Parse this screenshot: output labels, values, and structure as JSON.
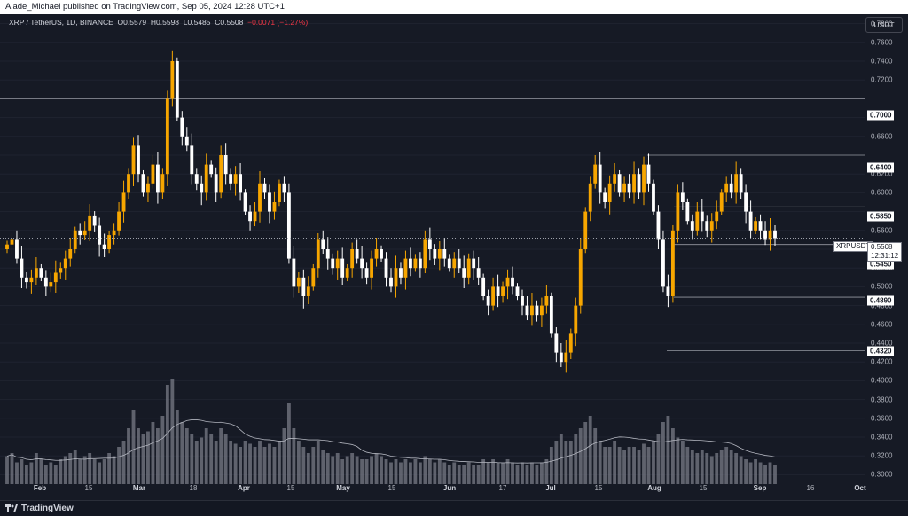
{
  "header": {
    "text": "Alade_Michael published on TradingView.com, Sep 05, 2024 12:28 UTC+1"
  },
  "symbol_line": {
    "name": "XRP / TetherUS, 1D, BINANCE",
    "o_label": "O",
    "o": "0.5579",
    "h_label": "H",
    "h": "0.5598",
    "l_label": "L",
    "l": "0.5485",
    "c_label": "C",
    "c": "0.5508",
    "change": "−0.0071 (−1.27%)"
  },
  "currency_button": "USDT",
  "footer": {
    "brand": "TradingView"
  },
  "price_tags": {
    "r1": "0.7000",
    "r2": "0.6400",
    "r3": "0.5850",
    "s1": "0.5450",
    "s2": "0.4890",
    "s3": "0.4320"
  },
  "current": {
    "symbol": "XRPUSDT",
    "price": "0.5508",
    "countdown": "12:31:12"
  },
  "colors": {
    "up": "#f7a600",
    "down": "#ffffff",
    "background": "#161a25",
    "volume": "#787b86"
  },
  "chart_data": {
    "type": "candlestick",
    "title": "XRP / TetherUS, 1D, BINANCE",
    "ylim": [
      0.29,
      0.79
    ],
    "y_ticks": [
      "0.7800",
      "0.7600",
      "0.7400",
      "0.7200",
      "0.6800",
      "0.6600",
      "0.6200",
      "0.6000",
      "0.5600",
      "0.5200",
      "0.5000",
      "0.4800",
      "0.4600",
      "0.4400",
      "0.4200",
      "0.4000",
      "0.3800",
      "0.3600",
      "0.3400",
      "0.3200",
      "0.3000"
    ],
    "x_ticks": [
      "Feb",
      "15",
      "Mar",
      "18",
      "Apr",
      "15",
      "May",
      "15",
      "Jun",
      "17",
      "Jul",
      "15",
      "Aug",
      "15",
      "Sep",
      "16",
      "Oct"
    ],
    "horizontal_levels": [
      0.7,
      0.64,
      0.585,
      0.545,
      0.489,
      0.432
    ],
    "close_path": [
      0.545,
      0.55,
      0.53,
      0.51,
      0.505,
      0.51,
      0.52,
      0.51,
      0.5,
      0.505,
      0.515,
      0.52,
      0.53,
      0.54,
      0.56,
      0.555,
      0.56,
      0.575,
      0.565,
      0.545,
      0.54,
      0.555,
      0.56,
      0.58,
      0.6,
      0.62,
      0.65,
      0.62,
      0.6,
      0.61,
      0.63,
      0.6,
      0.62,
      0.7,
      0.74,
      0.68,
      0.66,
      0.65,
      0.62,
      0.61,
      0.6,
      0.63,
      0.62,
      0.6,
      0.64,
      0.62,
      0.61,
      0.62,
      0.6,
      0.58,
      0.57,
      0.58,
      0.61,
      0.6,
      0.58,
      0.59,
      0.61,
      0.6,
      0.53,
      0.5,
      0.51,
      0.49,
      0.5,
      0.52,
      0.55,
      0.54,
      0.53,
      0.52,
      0.53,
      0.51,
      0.52,
      0.54,
      0.53,
      0.52,
      0.51,
      0.53,
      0.54,
      0.53,
      0.51,
      0.5,
      0.52,
      0.51,
      0.53,
      0.52,
      0.53,
      0.52,
      0.55,
      0.54,
      0.53,
      0.54,
      0.53,
      0.52,
      0.53,
      0.52,
      0.51,
      0.53,
      0.52,
      0.51,
      0.49,
      0.48,
      0.5,
      0.49,
      0.5,
      0.51,
      0.5,
      0.49,
      0.48,
      0.47,
      0.48,
      0.47,
      0.48,
      0.49,
      0.45,
      0.43,
      0.42,
      0.43,
      0.45,
      0.48,
      0.54,
      0.58,
      0.61,
      0.63,
      0.6,
      0.59,
      0.61,
      0.62,
      0.6,
      0.61,
      0.6,
      0.62,
      0.6,
      0.63,
      0.61,
      0.58,
      0.55,
      0.5,
      0.49,
      0.56,
      0.6,
      0.59,
      0.57,
      0.56,
      0.58,
      0.57,
      0.56,
      0.57,
      0.58,
      0.6,
      0.61,
      0.6,
      0.62,
      0.6,
      0.58,
      0.56,
      0.57,
      0.56,
      0.55,
      0.56,
      0.5508
    ],
    "volume_path": [
      0.45,
      0.5,
      0.35,
      0.4,
      0.3,
      0.35,
      0.5,
      0.4,
      0.3,
      0.35,
      0.3,
      0.4,
      0.45,
      0.5,
      0.55,
      0.4,
      0.45,
      0.5,
      0.4,
      0.35,
      0.4,
      0.5,
      0.45,
      0.6,
      0.7,
      0.9,
      1.2,
      0.9,
      0.8,
      0.85,
      1.0,
      0.9,
      1.1,
      1.6,
      1.7,
      1.2,
      1.0,
      0.9,
      0.8,
      0.7,
      0.75,
      0.9,
      0.8,
      0.7,
      0.9,
      0.8,
      0.7,
      0.65,
      0.6,
      0.7,
      0.65,
      0.6,
      0.7,
      0.6,
      0.65,
      0.6,
      0.7,
      0.9,
      1.3,
      0.9,
      0.7,
      0.6,
      0.5,
      0.6,
      0.7,
      0.55,
      0.5,
      0.45,
      0.5,
      0.4,
      0.45,
      0.5,
      0.45,
      0.4,
      0.4,
      0.45,
      0.5,
      0.45,
      0.4,
      0.35,
      0.4,
      0.35,
      0.4,
      0.35,
      0.4,
      0.35,
      0.45,
      0.4,
      0.35,
      0.4,
      0.35,
      0.3,
      0.35,
      0.3,
      0.3,
      0.35,
      0.3,
      0.3,
      0.4,
      0.35,
      0.4,
      0.35,
      0.35,
      0.4,
      0.35,
      0.3,
      0.35,
      0.3,
      0.35,
      0.3,
      0.35,
      0.4,
      0.6,
      0.7,
      0.8,
      0.7,
      0.7,
      0.8,
      0.9,
      1.0,
      1.1,
      0.9,
      0.7,
      0.6,
      0.6,
      0.7,
      0.6,
      0.55,
      0.6,
      0.6,
      0.55,
      0.65,
      0.6,
      0.7,
      0.8,
      1.0,
      1.1,
      0.9,
      0.75,
      0.7,
      0.6,
      0.55,
      0.5,
      0.55,
      0.5,
      0.45,
      0.5,
      0.55,
      0.6,
      0.55,
      0.5,
      0.45,
      0.4,
      0.35,
      0.4,
      0.35,
      0.3,
      0.35,
      0.3
    ]
  }
}
